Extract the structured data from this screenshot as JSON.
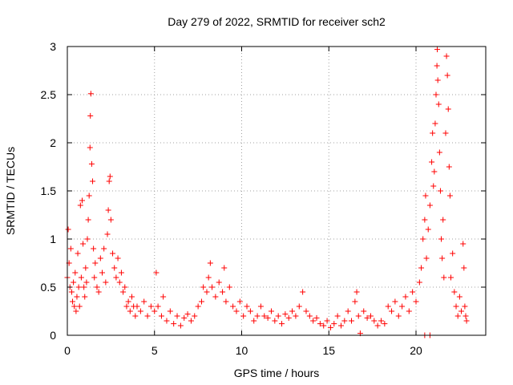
{
  "chart_data": {
    "type": "scatter",
    "title": "Day 279 of 2022, SRMTID for receiver sch2",
    "xlabel": "GPS time / hours",
    "ylabel": "SRMTID / TECUs",
    "xlim": [
      0,
      24
    ],
    "ylim": [
      0,
      3
    ],
    "x_ticks": [
      0,
      5,
      10,
      15,
      20
    ],
    "x_tick_labels": [
      "0",
      "5",
      "10",
      "15",
      "20"
    ],
    "y_ticks": [
      0,
      0.5,
      1,
      1.5,
      2,
      2.5,
      3
    ],
    "y_tick_labels": [
      "0",
      "0.5",
      "1",
      "1.5",
      "2",
      "2.5",
      "3"
    ],
    "grid": true,
    "marker": "+",
    "color": "#ff0000",
    "series": [
      {
        "name": "sch2",
        "points": [
          [
            0.0,
            0.6
          ],
          [
            0.05,
            1.1
          ],
          [
            0.1,
            0.75
          ],
          [
            0.15,
            0.5
          ],
          [
            0.2,
            0.9
          ],
          [
            0.25,
            0.45
          ],
          [
            0.3,
            0.35
          ],
          [
            0.35,
            0.55
          ],
          [
            0.4,
            0.3
          ],
          [
            0.45,
            0.65
          ],
          [
            0.5,
            0.25
          ],
          [
            0.55,
            0.4
          ],
          [
            0.6,
            0.85
          ],
          [
            0.65,
            0.5
          ],
          [
            0.7,
            0.3
          ],
          [
            0.75,
            1.35
          ],
          [
            0.8,
            0.6
          ],
          [
            0.85,
            1.4
          ],
          [
            0.9,
            0.95
          ],
          [
            0.95,
            0.5
          ],
          [
            1.0,
            0.4
          ],
          [
            1.05,
            0.7
          ],
          [
            1.1,
            0.55
          ],
          [
            1.15,
            1.0
          ],
          [
            1.2,
            1.2
          ],
          [
            1.25,
            1.45
          ],
          [
            1.3,
            1.95
          ],
          [
            1.32,
            2.28
          ],
          [
            1.35,
            2.51
          ],
          [
            1.4,
            1.78
          ],
          [
            1.45,
            1.6
          ],
          [
            1.5,
            0.9
          ],
          [
            1.55,
            0.6
          ],
          [
            1.6,
            0.75
          ],
          [
            1.7,
            0.5
          ],
          [
            1.8,
            0.45
          ],
          [
            1.9,
            0.8
          ],
          [
            2.0,
            0.65
          ],
          [
            2.1,
            0.9
          ],
          [
            2.2,
            0.55
          ],
          [
            2.3,
            1.05
          ],
          [
            2.35,
            1.3
          ],
          [
            2.4,
            1.6
          ],
          [
            2.45,
            1.65
          ],
          [
            2.5,
            1.2
          ],
          [
            2.6,
            0.85
          ],
          [
            2.7,
            0.7
          ],
          [
            2.8,
            0.6
          ],
          [
            2.9,
            0.8
          ],
          [
            3.0,
            0.55
          ],
          [
            3.1,
            0.65
          ],
          [
            3.2,
            0.45
          ],
          [
            3.3,
            0.5
          ],
          [
            3.4,
            0.3
          ],
          [
            3.5,
            0.35
          ],
          [
            3.6,
            0.25
          ],
          [
            3.7,
            0.4
          ],
          [
            3.8,
            0.3
          ],
          [
            3.9,
            0.2
          ],
          [
            4.0,
            0.3
          ],
          [
            4.2,
            0.25
          ],
          [
            4.4,
            0.35
          ],
          [
            4.6,
            0.2
          ],
          [
            4.8,
            0.3
          ],
          [
            5.0,
            0.25
          ],
          [
            5.1,
            0.65
          ],
          [
            5.2,
            0.3
          ],
          [
            5.4,
            0.2
          ],
          [
            5.5,
            0.4
          ],
          [
            5.7,
            0.15
          ],
          [
            5.9,
            0.25
          ],
          [
            6.1,
            0.12
          ],
          [
            6.3,
            0.2
          ],
          [
            6.5,
            0.1
          ],
          [
            6.7,
            0.18
          ],
          [
            6.9,
            0.22
          ],
          [
            7.1,
            0.15
          ],
          [
            7.3,
            0.2
          ],
          [
            7.5,
            0.3
          ],
          [
            7.7,
            0.35
          ],
          [
            7.8,
            0.5
          ],
          [
            8.0,
            0.45
          ],
          [
            8.1,
            0.6
          ],
          [
            8.2,
            0.75
          ],
          [
            8.3,
            0.5
          ],
          [
            8.5,
            0.4
          ],
          [
            8.7,
            0.55
          ],
          [
            8.9,
            0.45
          ],
          [
            9.0,
            0.7
          ],
          [
            9.1,
            0.35
          ],
          [
            9.3,
            0.5
          ],
          [
            9.5,
            0.3
          ],
          [
            9.7,
            0.25
          ],
          [
            9.9,
            0.35
          ],
          [
            10.1,
            0.2
          ],
          [
            10.3,
            0.3
          ],
          [
            10.5,
            0.25
          ],
          [
            10.7,
            0.15
          ],
          [
            10.9,
            0.2
          ],
          [
            11.1,
            0.3
          ],
          [
            11.3,
            0.2
          ],
          [
            11.5,
            0.18
          ],
          [
            11.7,
            0.25
          ],
          [
            11.9,
            0.15
          ],
          [
            12.1,
            0.2
          ],
          [
            12.3,
            0.12
          ],
          [
            12.5,
            0.22
          ],
          [
            12.7,
            0.18
          ],
          [
            12.9,
            0.25
          ],
          [
            13.1,
            0.2
          ],
          [
            13.3,
            0.3
          ],
          [
            13.5,
            0.45
          ],
          [
            13.7,
            0.25
          ],
          [
            13.9,
            0.2
          ],
          [
            14.1,
            0.15
          ],
          [
            14.3,
            0.18
          ],
          [
            14.5,
            0.12
          ],
          [
            14.7,
            0.1
          ],
          [
            14.9,
            0.15
          ],
          [
            15.1,
            0.08
          ],
          [
            15.3,
            0.12
          ],
          [
            15.5,
            0.2
          ],
          [
            15.7,
            0.1
          ],
          [
            15.9,
            0.15
          ],
          [
            16.1,
            0.25
          ],
          [
            16.3,
            0.15
          ],
          [
            16.5,
            0.35
          ],
          [
            16.6,
            0.45
          ],
          [
            16.7,
            0.2
          ],
          [
            16.8,
            0.02
          ],
          [
            17.0,
            0.25
          ],
          [
            17.2,
            0.18
          ],
          [
            17.4,
            0.2
          ],
          [
            17.6,
            0.15
          ],
          [
            17.8,
            0.1
          ],
          [
            18.0,
            0.15
          ],
          [
            18.2,
            0.12
          ],
          [
            18.4,
            0.3
          ],
          [
            18.6,
            0.25
          ],
          [
            18.8,
            0.35
          ],
          [
            19.0,
            0.2
          ],
          [
            19.2,
            0.3
          ],
          [
            19.4,
            0.4
          ],
          [
            19.6,
            0.25
          ],
          [
            19.8,
            0.45
          ],
          [
            20.0,
            0.35
          ],
          [
            20.2,
            0.55
          ],
          [
            20.3,
            0.7
          ],
          [
            20.4,
            1.0
          ],
          [
            20.5,
            1.2
          ],
          [
            20.55,
            1.45
          ],
          [
            20.6,
            0.8
          ],
          [
            20.7,
            1.1
          ],
          [
            20.8,
            1.35
          ],
          [
            20.9,
            1.8
          ],
          [
            20.95,
            2.1
          ],
          [
            21.0,
            1.55
          ],
          [
            21.05,
            1.7
          ],
          [
            21.1,
            2.2
          ],
          [
            21.15,
            2.5
          ],
          [
            21.2,
            2.8
          ],
          [
            21.22,
            2.97
          ],
          [
            21.25,
            2.65
          ],
          [
            21.3,
            2.4
          ],
          [
            21.35,
            1.9
          ],
          [
            21.4,
            1.5
          ],
          [
            21.45,
            1.0
          ],
          [
            21.5,
            0.8
          ],
          [
            21.55,
            1.2
          ],
          [
            21.6,
            0.6
          ],
          [
            21.7,
            2.1
          ],
          [
            21.75,
            2.9
          ],
          [
            21.8,
            2.7
          ],
          [
            21.85,
            2.35
          ],
          [
            21.9,
            1.75
          ],
          [
            21.95,
            1.45
          ],
          [
            22.0,
            0.6
          ],
          [
            22.1,
            0.85
          ],
          [
            22.2,
            0.45
          ],
          [
            22.3,
            0.3
          ],
          [
            22.4,
            0.2
          ],
          [
            22.5,
            0.4
          ],
          [
            22.6,
            0.25
          ],
          [
            22.7,
            0.95
          ],
          [
            22.75,
            0.7
          ],
          [
            22.8,
            0.3
          ],
          [
            22.85,
            0.2
          ],
          [
            22.9,
            0.15
          ],
          [
            20.5,
            0.0
          ],
          [
            20.8,
            0.0
          ]
        ]
      }
    ]
  }
}
